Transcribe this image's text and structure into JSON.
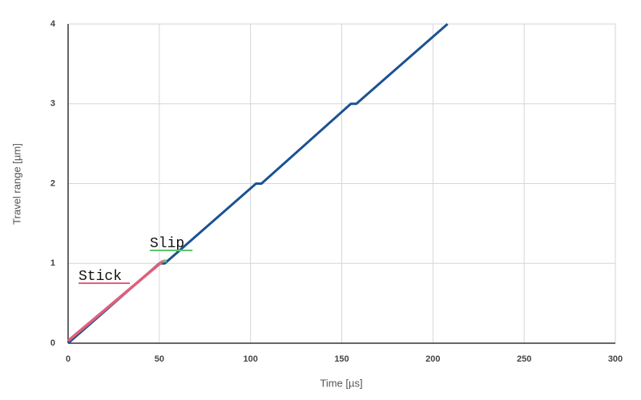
{
  "chart_data": {
    "type": "line",
    "x_label": "Time [µs]",
    "y_label": "Travel range [µm]",
    "xlim": [
      0,
      300
    ],
    "xticks": [
      0,
      50,
      100,
      150,
      200,
      250,
      300
    ],
    "ylim": [
      0,
      4
    ],
    "yticks": [
      0,
      1,
      2,
      3,
      4
    ],
    "grid": true,
    "series": [
      {
        "color": "#1a5292",
        "x": [
          0,
          50,
          53,
          103,
          106,
          155,
          158,
          208
        ],
        "values": [
          0,
          1,
          1,
          2,
          2,
          3,
          3,
          4
        ]
      },
      {
        "name": "Stick",
        "color": "#e0607a",
        "x": [
          0,
          52
        ],
        "values": [
          0.03,
          1.03
        ]
      },
      {
        "name": "Slip",
        "color": "#5ec46e",
        "x": [
          52,
          54
        ],
        "values": [
          1.03,
          1.03
        ]
      }
    ]
  }
}
